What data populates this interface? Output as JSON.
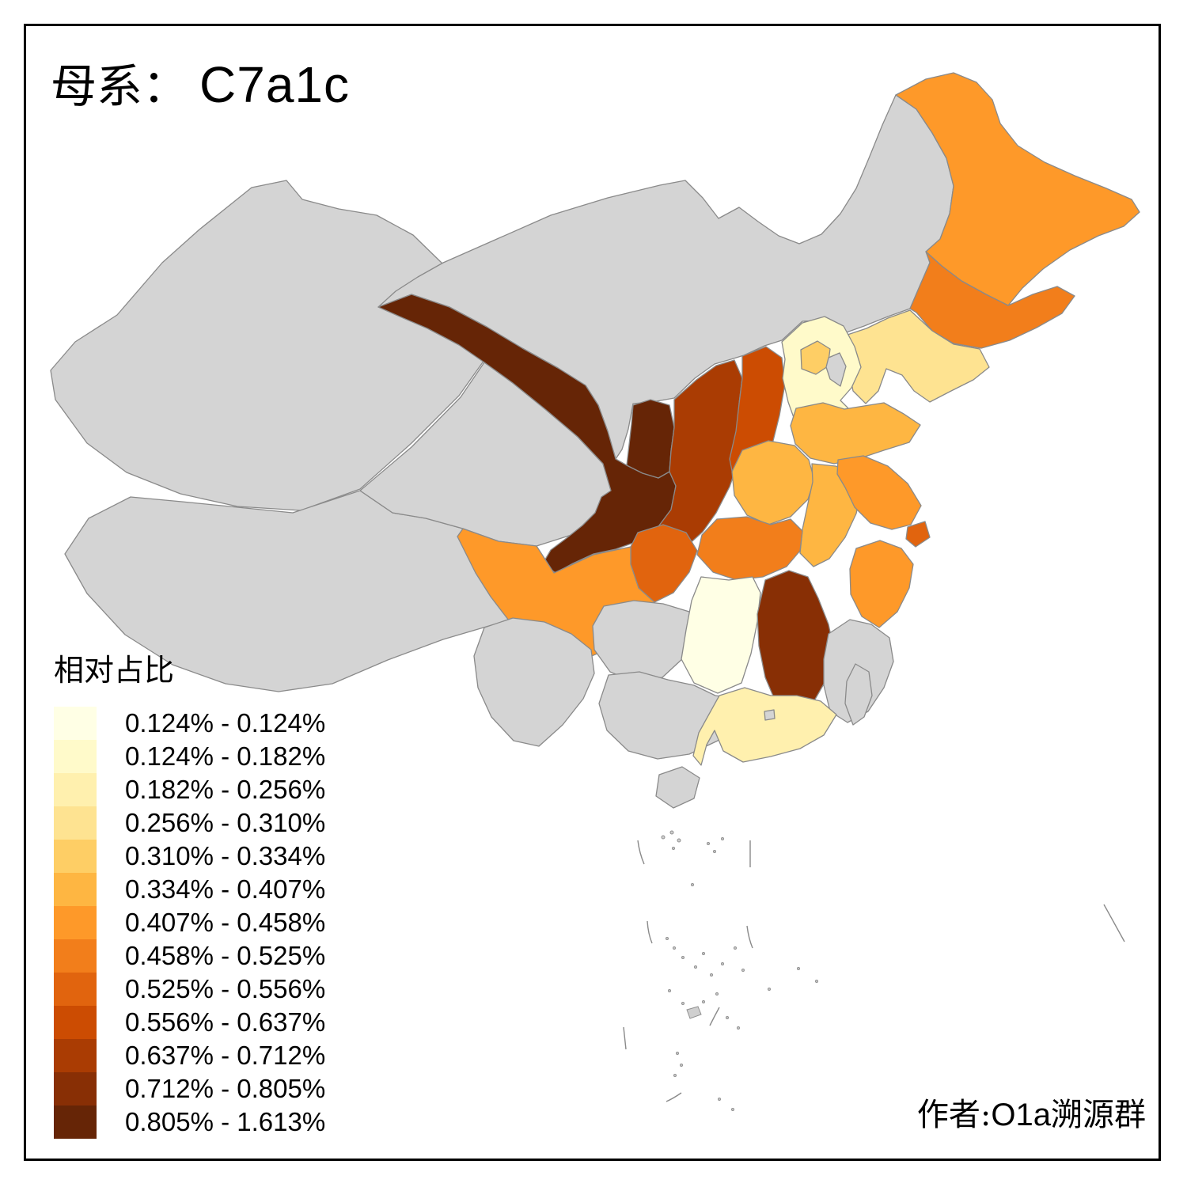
{
  "title": {
    "prefix": "母系：",
    "haplogroup": "C7a1c"
  },
  "attribution": {
    "label_cjk_prefix": "作者:",
    "label_latin": "O1a",
    "label_cjk_suffix": "溯源群",
    "full_text": "作者:O1a溯源群"
  },
  "legend": {
    "title": "相对占比",
    "entries": [
      {
        "label": "0.124% - 0.124%",
        "color": "#FFFFE5"
      },
      {
        "label": "0.124% - 0.182%",
        "color": "#FFFACA"
      },
      {
        "label": "0.182% - 0.256%",
        "color": "#FFF0AE"
      },
      {
        "label": "0.256% - 0.310%",
        "color": "#FEE391"
      },
      {
        "label": "0.310% - 0.334%",
        "color": "#FECE65"
      },
      {
        "label": "0.334% - 0.407%",
        "color": "#FEB642"
      },
      {
        "label": "0.407% - 0.458%",
        "color": "#FE9929"
      },
      {
        "label": "0.458% - 0.525%",
        "color": "#F27E1B"
      },
      {
        "label": "0.525% - 0.556%",
        "color": "#E1640E"
      },
      {
        "label": "0.556% - 0.637%",
        "color": "#CC4C02"
      },
      {
        "label": "0.637% - 0.712%",
        "color": "#AA3C03"
      },
      {
        "label": "0.712% - 0.805%",
        "color": "#882F05"
      },
      {
        "label": "0.805% - 1.613%",
        "color": "#662506"
      }
    ]
  },
  "map": {
    "background": "#FFFFFF",
    "no_data_fill": "#D4D4D4",
    "border_color": "#8A8A8A",
    "palette": [
      "#FFFFE5",
      "#FFFACA",
      "#FFF0AE",
      "#FEE391",
      "#FECE65",
      "#FEB642",
      "#FE9929",
      "#F27E1B",
      "#E1640E",
      "#CC4C02",
      "#AA3C03",
      "#882F05",
      "#662506"
    ],
    "regions": {
      "xinjiang": null,
      "xizang": null,
      "qinghai": null,
      "nei-mongol": null,
      "gansu": 13,
      "ningxia": 13,
      "shaanxi": 11,
      "shanxi": 10,
      "hebei": 2,
      "beijing": 5,
      "tianjin": null,
      "heilongjiang": 7,
      "jilin": 8,
      "liaoning": 4,
      "shandong": 6,
      "henan": 6,
      "anhui": 6,
      "jiangsu": 7,
      "shanghai": 9,
      "zhejiang": 7,
      "hubei": 8,
      "chongqing": 9,
      "sichuan": 7,
      "guizhou": null,
      "hunan": 1,
      "jiangxi": 12,
      "fujian": null,
      "yunnan": null,
      "guangxi": null,
      "guangdong": 3,
      "hainan": null,
      "taiwan": null,
      "hongkong": null
    }
  }
}
